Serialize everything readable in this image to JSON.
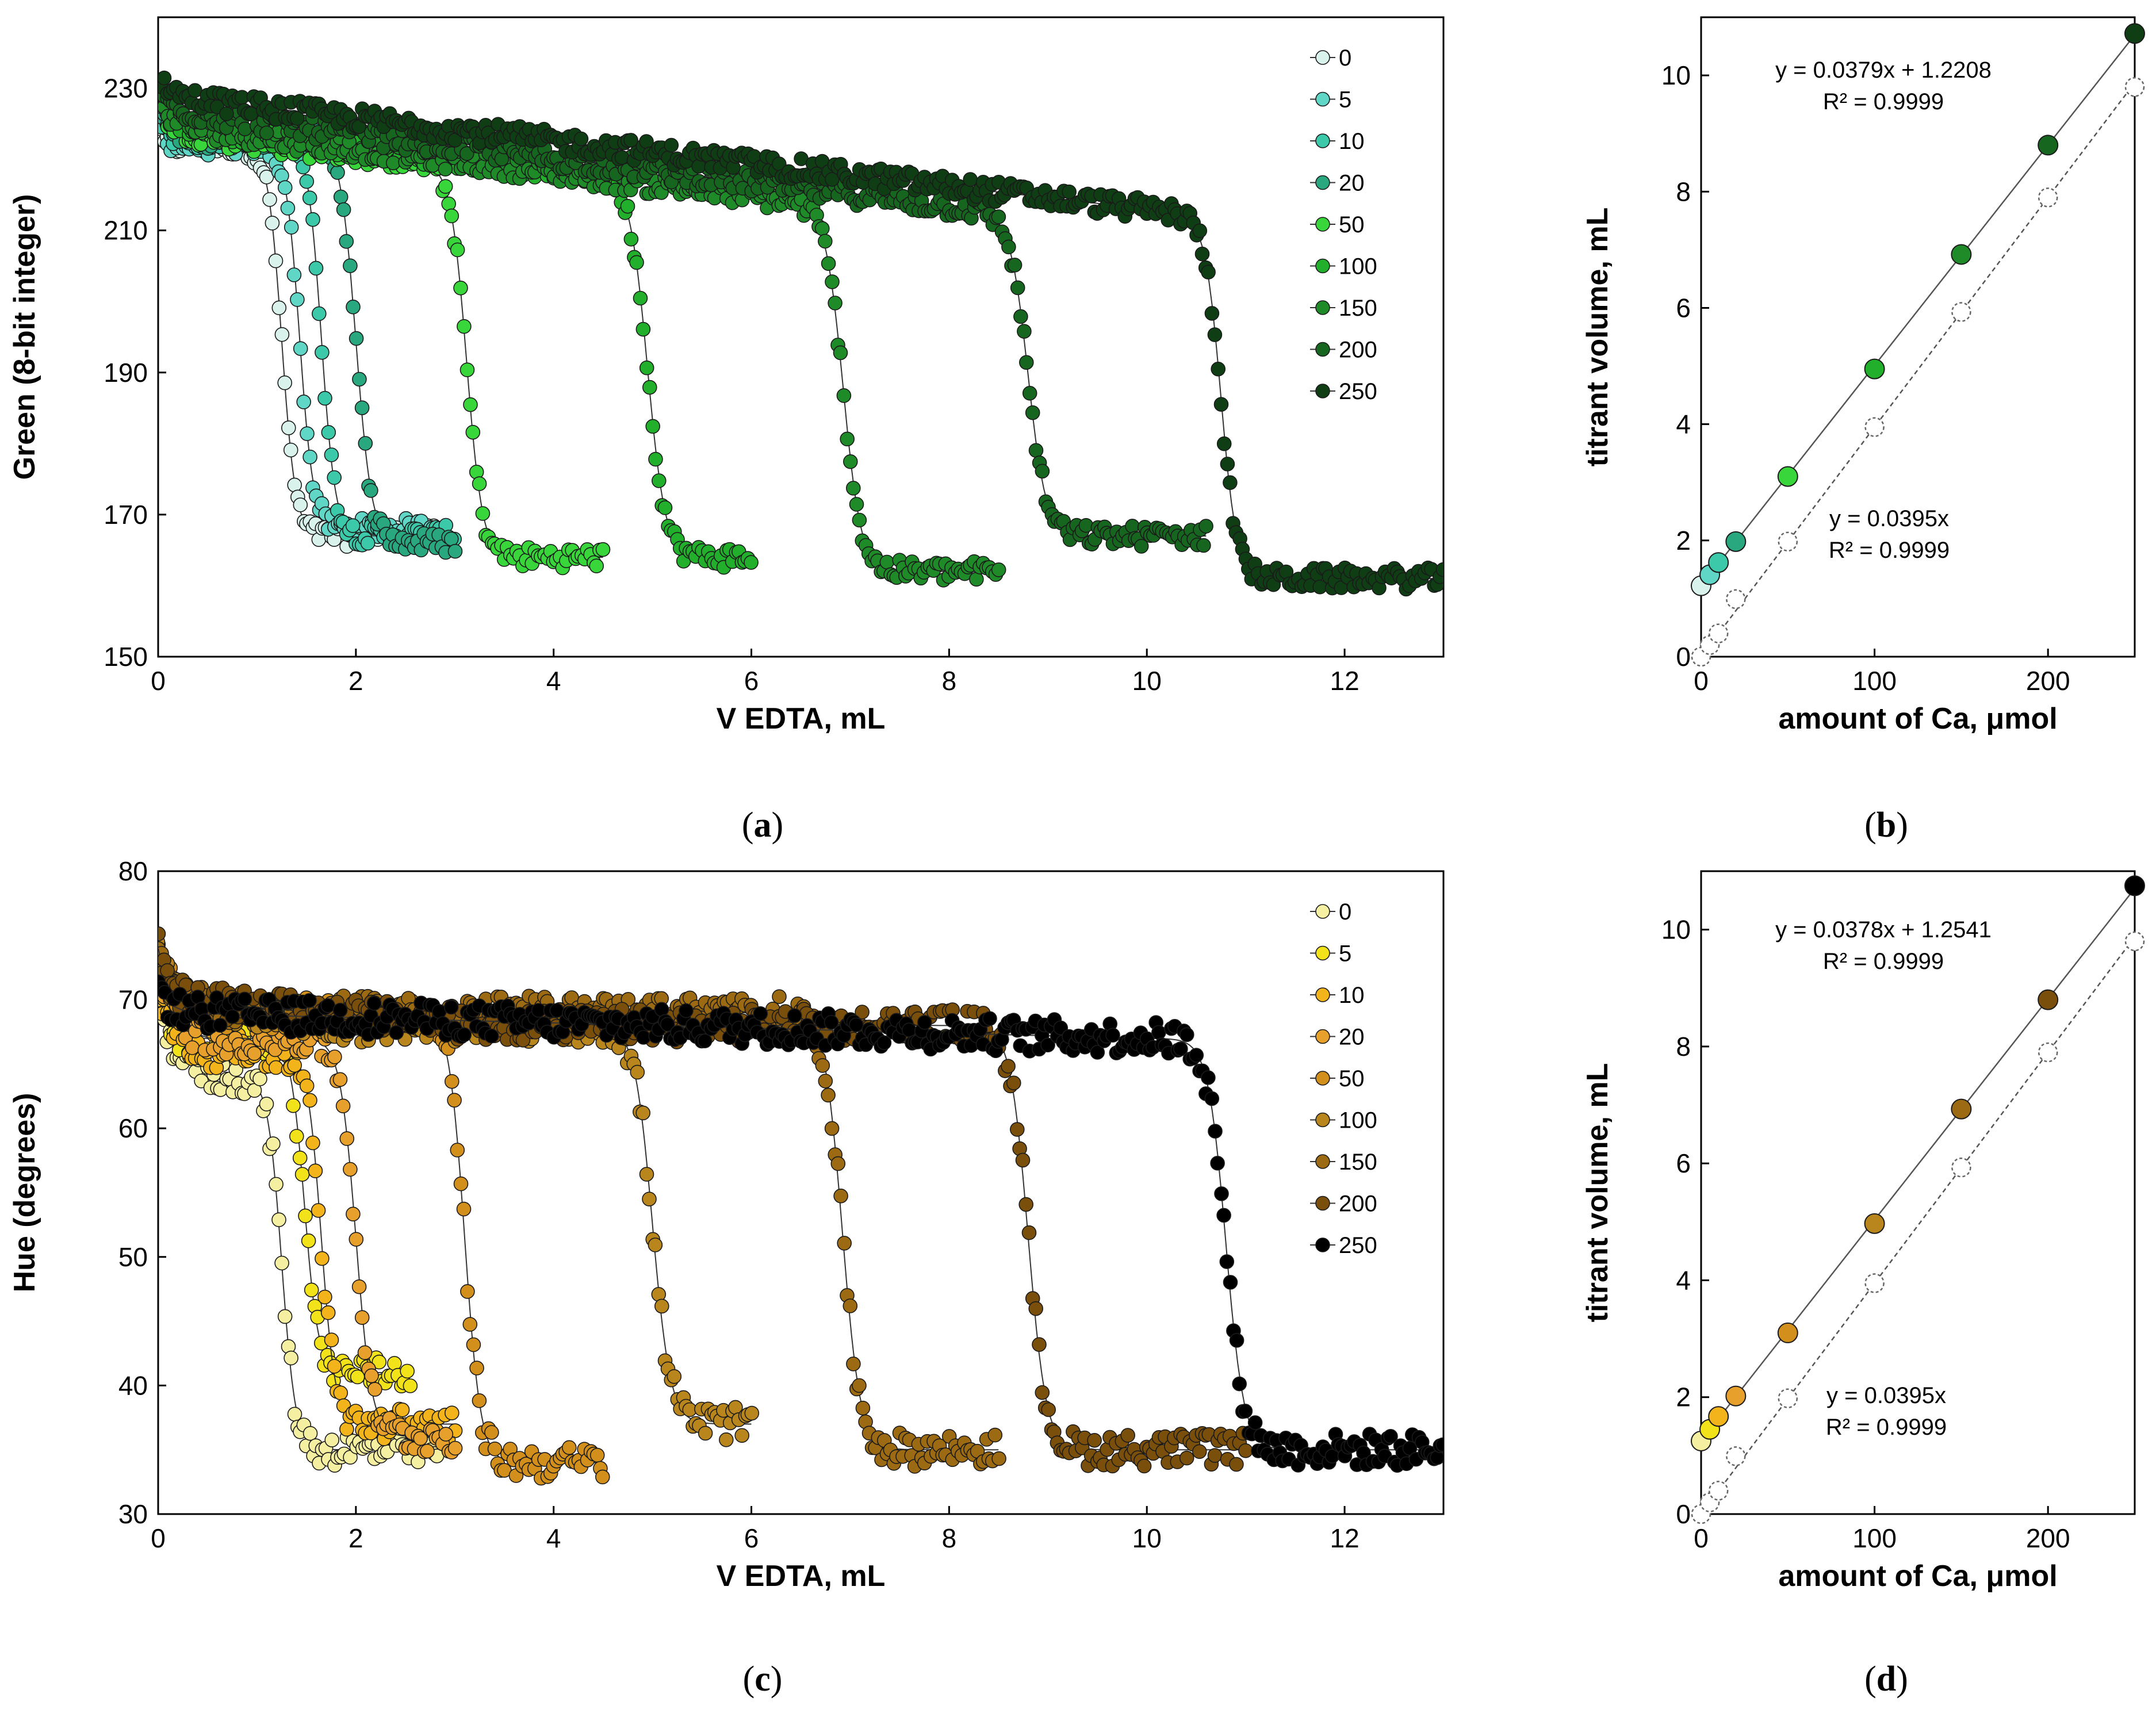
{
  "legend_labels": [
    "0",
    "5",
    "10",
    "20",
    "50",
    "100",
    "150",
    "200",
    "250"
  ],
  "colors": {
    "green_series": [
      "#d9f2ec",
      "#5fd6c6",
      "#3cc9a9",
      "#29a77f",
      "#38d63a",
      "#22b02c",
      "#1f8a28",
      "#17661f",
      "#0f3d14"
    ],
    "hue_series": [
      "#f5efa2",
      "#f2e21a",
      "#f2b41a",
      "#e6a02b",
      "#d28f1c",
      "#b8861c",
      "#9c6a12",
      "#7a4f0c",
      "#000000"
    ],
    "open_marker": "#ffffff",
    "fit_line": "#555555"
  },
  "charts": [
    {
      "type": "line",
      "panel_label": "a",
      "title": "",
      "xlabel": "V EDTA, mL",
      "ylabel": "Green (8-bit integer)",
      "xlim": [
        0,
        13
      ],
      "ylim": [
        150,
        240
      ],
      "xticks": [
        0,
        2,
        4,
        6,
        8,
        10,
        12
      ],
      "yticks": [
        150,
        170,
        190,
        210,
        230
      ],
      "marker_style": "filled-circle",
      "series": [
        {
          "name": "0",
          "ve": 1.25,
          "vmax": 2.85,
          "high": 222,
          "low": 167,
          "start": 224,
          "jump": 5,
          "slope": 0.8,
          "width": 0.07
        },
        {
          "name": "5",
          "ve": 1.43,
          "vmax": 2.85,
          "high": 222,
          "low": 168,
          "start": 226,
          "jump": 5,
          "slope": 0.8,
          "width": 0.07
        },
        {
          "name": "10",
          "ve": 1.65,
          "vmax": 3.0,
          "high": 223,
          "low": 167,
          "start": 227,
          "jump": 5,
          "slope": 0.8,
          "width": 0.07
        },
        {
          "name": "20",
          "ve": 2.0,
          "vmax": 3.0,
          "high": 223,
          "low": 166,
          "start": 228,
          "jump": 5,
          "slope": 0.8,
          "width": 0.08
        },
        {
          "name": "50",
          "ve": 3.12,
          "vmax": 4.5,
          "high": 218,
          "low": 164,
          "start": 228,
          "jump": 4,
          "slope": 1.6,
          "width": 0.08
        },
        {
          "name": "100",
          "ve": 4.95,
          "vmax": 6.0,
          "high": 214,
          "low": 164,
          "start": 229,
          "jump": 4,
          "slope": 1.6,
          "width": 0.09
        },
        {
          "name": "150",
          "ve": 6.93,
          "vmax": 8.5,
          "high": 213,
          "low": 162,
          "start": 229,
          "jump": 4,
          "slope": 1.7,
          "width": 0.09
        },
        {
          "name": "200",
          "ve": 8.8,
          "vmax": 10.6,
          "high": 212,
          "low": 167,
          "start": 230,
          "jump": 3,
          "slope": 1.7,
          "width": 0.09
        },
        {
          "name": "250",
          "ve": 10.75,
          "vmax": 13.0,
          "high": 205,
          "low": 161,
          "start": 232,
          "jump": 3,
          "slope": 1.6,
          "width": 0.08
        }
      ]
    },
    {
      "type": "scatter",
      "panel_label": "b",
      "title": "",
      "xlabel": "amount of Ca, μmol",
      "ylabel": "titrant volume, mL",
      "xlim": [
        0,
        250
      ],
      "ylim": [
        0,
        11
      ],
      "xticks": [
        0,
        100,
        200
      ],
      "yticks": [
        0,
        2,
        4,
        6,
        8,
        10
      ],
      "fit_filled": {
        "equation": "y = 0.0379x + 1.2208",
        "r2": "R² = 0.9999",
        "slope": 0.0379,
        "intercept": 1.2208
      },
      "fit_open": {
        "equation": "y = 0.0395x",
        "r2": "R² = 0.9999",
        "slope": 0.0395,
        "intercept": 0
      },
      "x": [
        0,
        5,
        10,
        20,
        50,
        100,
        150,
        200,
        250
      ],
      "y_filled": [
        1.22,
        1.41,
        1.62,
        1.98,
        3.1,
        4.95,
        6.92,
        8.8,
        10.72
      ],
      "y_open": [
        0,
        0.2,
        0.4,
        0.99,
        1.98,
        3.95,
        5.93,
        7.9,
        9.8
      ]
    },
    {
      "type": "line",
      "panel_label": "c",
      "title": "",
      "xlabel": "V EDTA, mL",
      "ylabel": "Hue (degrees)",
      "xlim": [
        0,
        13
      ],
      "ylim": [
        30,
        80
      ],
      "xticks": [
        0,
        2,
        4,
        6,
        8,
        10,
        12
      ],
      "yticks": [
        30,
        40,
        50,
        60,
        70,
        80
      ],
      "marker_style": "filled-circle",
      "series": [
        {
          "name": "0",
          "ve": 1.25,
          "vmax": 2.85,
          "high": 64,
          "low": 35,
          "start": 70,
          "jump": 4,
          "slope": 3.5,
          "width": 0.07
        },
        {
          "name": "5",
          "ve": 1.48,
          "vmax": 2.55,
          "high": 67,
          "low": 41,
          "start": 71,
          "jump": 4,
          "slope": 2.5,
          "width": 0.07
        },
        {
          "name": "10",
          "ve": 1.65,
          "vmax": 3.0,
          "high": 66,
          "low": 37,
          "start": 71,
          "jump": 4,
          "slope": 2.5,
          "width": 0.07
        },
        {
          "name": "20",
          "ve": 2.0,
          "vmax": 3.0,
          "high": 67,
          "low": 36,
          "start": 72,
          "jump": 4,
          "slope": 2.0,
          "width": 0.08
        },
        {
          "name": "50",
          "ve": 3.1,
          "vmax": 4.5,
          "high": 69,
          "low": 34,
          "start": 74,
          "jump": 4,
          "slope": 1.5,
          "width": 0.08
        },
        {
          "name": "100",
          "ve": 5.0,
          "vmax": 6.0,
          "high": 68,
          "low": 37,
          "start": 74,
          "jump": 4,
          "slope": 1.0,
          "width": 0.09
        },
        {
          "name": "150",
          "ve": 6.92,
          "vmax": 8.5,
          "high": 69,
          "low": 35,
          "start": 74,
          "jump": 4,
          "slope": 0.7,
          "width": 0.09
        },
        {
          "name": "200",
          "ve": 8.8,
          "vmax": 11.0,
          "high": 68,
          "low": 35,
          "start": 74,
          "jump": 4,
          "slope": 0.6,
          "width": 0.09
        },
        {
          "name": "250",
          "ve": 10.8,
          "vmax": 13.0,
          "high": 67,
          "low": 35,
          "start": 71,
          "jump": 2,
          "slope": 0.2,
          "width": 0.09
        }
      ]
    },
    {
      "type": "scatter",
      "panel_label": "d",
      "title": "",
      "xlabel": "amount of Ca, μmol",
      "ylabel": "titrant volume, mL",
      "xlim": [
        0,
        250
      ],
      "ylim": [
        0,
        11
      ],
      "xticks": [
        0,
        100,
        200
      ],
      "yticks": [
        0,
        2,
        4,
        6,
        8,
        10
      ],
      "fit_filled": {
        "equation": "y = 0.0378x + 1.2541",
        "r2": "R² = 0.9999",
        "slope": 0.0378,
        "intercept": 1.2541
      },
      "fit_open": {
        "equation": "y = 0.0395x",
        "r2": "R² = 0.9999",
        "slope": 0.0395,
        "intercept": 0
      },
      "x": [
        0,
        5,
        10,
        20,
        50,
        100,
        150,
        200,
        250
      ],
      "y_filled": [
        1.25,
        1.45,
        1.67,
        2.02,
        3.1,
        4.97,
        6.93,
        8.8,
        10.75
      ],
      "y_open": [
        0,
        0.2,
        0.4,
        0.99,
        1.98,
        3.95,
        5.93,
        7.9,
        9.8
      ]
    }
  ]
}
